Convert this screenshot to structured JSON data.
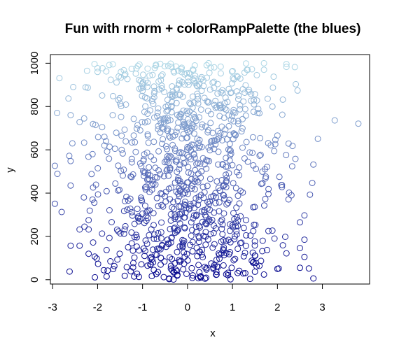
{
  "chart_data": {
    "type": "scatter",
    "title": "Fun with rnorm + colorRampPalette (the blues)",
    "xlabel": "x",
    "ylabel": "y",
    "xlim": [
      -3.05,
      4.05
    ],
    "ylim": [
      -20,
      1040
    ],
    "xticks": [
      -3,
      -2,
      -1,
      0,
      1,
      2,
      3
    ],
    "yticks": [
      0,
      200,
      400,
      600,
      800,
      1000
    ],
    "grid": false,
    "legend": "none",
    "color_ramp": [
      "#00008B",
      "#ADD8E6"
    ],
    "n_points": 1000,
    "note": "Each point i (1..1000): x ~ rnorm, y = i, colored along ramp from dark blue (low y) to light blue (high y).",
    "points": [
      {
        "x": -2.9,
        "y": 770
      },
      {
        "x": -2.8,
        "y": 313
      },
      {
        "x": -2.6,
        "y": 548
      },
      {
        "x": -2.6,
        "y": 435
      },
      {
        "x": -2.6,
        "y": 157
      },
      {
        "x": -2.6,
        "y": 760
      },
      {
        "x": -2.4,
        "y": 728
      },
      {
        "x": -2.4,
        "y": 232
      },
      {
        "x": -2.4,
        "y": 157
      },
      {
        "x": -2.3,
        "y": 633
      },
      {
        "x": -2.3,
        "y": 745
      },
      {
        "x": -2.2,
        "y": 275
      },
      {
        "x": -2.2,
        "y": 232
      },
      {
        "x": -2.2,
        "y": 120
      },
      {
        "x": -2.1,
        "y": 426
      },
      {
        "x": -2.1,
        "y": 172
      },
      {
        "x": -2.0,
        "y": 960
      },
      {
        "x": -2.0,
        "y": 977
      },
      {
        "x": -1.9,
        "y": 851
      },
      {
        "x": -1.9,
        "y": 705
      },
      {
        "x": -1.8,
        "y": 15
      },
      {
        "x": -1.8,
        "y": 137
      },
      {
        "x": 2.0,
        "y": 666
      },
      {
        "x": 2.0,
        "y": 50
      },
      {
        "x": 2.1,
        "y": 437
      },
      {
        "x": 2.1,
        "y": 428
      },
      {
        "x": 2.2,
        "y": 983
      },
      {
        "x": 2.2,
        "y": 996
      },
      {
        "x": 2.2,
        "y": 122
      },
      {
        "x": 2.4,
        "y": 558
      },
      {
        "x": 2.5,
        "y": 265
      },
      {
        "x": 2.5,
        "y": 55
      },
      {
        "x": 2.6,
        "y": 297
      },
      {
        "x": 2.6,
        "y": 185
      },
      {
        "x": 2.6,
        "y": 105
      },
      {
        "x": 2.7,
        "y": 52
      },
      {
        "x": 2.8,
        "y": 532
      },
      {
        "x": 2.8,
        "y": 6
      },
      {
        "x": 2.9,
        "y": 651
      },
      {
        "x": 3.8,
        "y": 721
      },
      {
        "x": 1.8,
        "y": 396
      },
      {
        "x": 1.7,
        "y": 1000
      },
      {
        "x": 1.7,
        "y": 970
      },
      {
        "x": 1.9,
        "y": 887
      },
      {
        "x": 1.7,
        "y": 24
      },
      {
        "x": 1.8,
        "y": 225
      },
      {
        "x": 1.5,
        "y": 37
      },
      {
        "x": 1.6,
        "y": 64
      }
    ]
  }
}
